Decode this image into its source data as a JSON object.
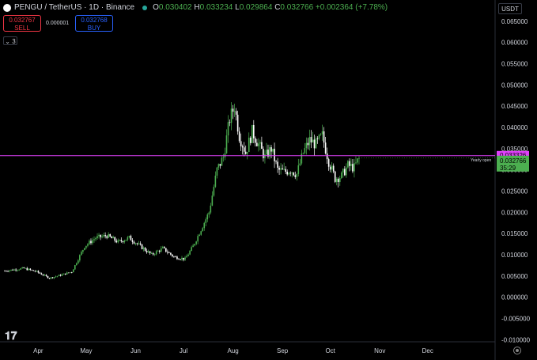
{
  "header": {
    "symbol": "PENGU / TetherUS · 1D · Binance",
    "open_key": "O",
    "open_val": "0.030402",
    "high_key": "H",
    "high_val": "0.033234",
    "low_key": "L",
    "low_val": "0.029864",
    "close_key": "C",
    "close_val": "0.032766",
    "change": "+0.002364 (+7.78%)"
  },
  "trade": {
    "sell_price": "0.032767",
    "sell_label": "SELL",
    "spread": "0.000001",
    "buy_price": "0.032768",
    "buy_label": "BUY"
  },
  "indicator_toggle": "3",
  "currency": "USDT",
  "colors": {
    "up": "#4caf50",
    "down": "#ffffff",
    "yearly_open_line": "#e040fb",
    "price_label": "#4caf50",
    "text": "#d1d4dc"
  },
  "chart_data": {
    "type": "candlestick",
    "y_ticks": [
      "0.065000",
      "0.060000",
      "0.055000",
      "0.050000",
      "0.045000",
      "0.040000",
      "0.035000",
      "0.030000",
      "0.025000",
      "0.020000",
      "0.015000",
      "0.010000",
      "0.005000",
      "0.000000",
      "-0.005000",
      "-0.010000"
    ],
    "ylim": [
      -0.0105,
      0.0685
    ],
    "x_ticks": [
      "Apr",
      "May",
      "Jun",
      "Jul",
      "Aug",
      "Sep",
      "Oct",
      "Nov",
      "Dec"
    ],
    "yearly_open": {
      "label": "Yearly open",
      "value": 0.033326,
      "value_label": "0.033326"
    },
    "last_price": {
      "value": 0.032766,
      "value_label": "0.032766",
      "countdown": "35:29"
    },
    "close_points": [
      {
        "day": 0,
        "close": 0.0062
      },
      {
        "day": 12,
        "close": 0.0068
      },
      {
        "day": 20,
        "close": 0.006
      },
      {
        "day": 28,
        "close": 0.0045
      },
      {
        "day": 35,
        "close": 0.0052
      },
      {
        "day": 42,
        "close": 0.006
      },
      {
        "day": 50,
        "close": 0.012
      },
      {
        "day": 57,
        "close": 0.014
      },
      {
        "day": 64,
        "close": 0.0145
      },
      {
        "day": 71,
        "close": 0.013
      },
      {
        "day": 78,
        "close": 0.014
      },
      {
        "day": 85,
        "close": 0.012
      },
      {
        "day": 92,
        "close": 0.01
      },
      {
        "day": 99,
        "close": 0.0115
      },
      {
        "day": 106,
        "close": 0.0095
      },
      {
        "day": 113,
        "close": 0.009
      },
      {
        "day": 118,
        "close": 0.012
      },
      {
        "day": 123,
        "close": 0.016
      },
      {
        "day": 128,
        "close": 0.02
      },
      {
        "day": 133,
        "close": 0.03
      },
      {
        "day": 137,
        "close": 0.033
      },
      {
        "day": 141,
        "close": 0.042
      },
      {
        "day": 144,
        "close": 0.045
      },
      {
        "day": 147,
        "close": 0.038
      },
      {
        "day": 151,
        "close": 0.034
      },
      {
        "day": 155,
        "close": 0.039
      },
      {
        "day": 159,
        "close": 0.036
      },
      {
        "day": 163,
        "close": 0.033
      },
      {
        "day": 167,
        "close": 0.035
      },
      {
        "day": 171,
        "close": 0.03
      },
      {
        "day": 175,
        "close": 0.0295
      },
      {
        "day": 179,
        "close": 0.03
      },
      {
        "day": 183,
        "close": 0.029
      },
      {
        "day": 187,
        "close": 0.034
      },
      {
        "day": 191,
        "close": 0.037
      },
      {
        "day": 195,
        "close": 0.036
      },
      {
        "day": 199,
        "close": 0.038
      },
      {
        "day": 203,
        "close": 0.032
      },
      {
        "day": 207,
        "close": 0.028
      },
      {
        "day": 211,
        "close": 0.0285
      },
      {
        "day": 215,
        "close": 0.031
      },
      {
        "day": 219,
        "close": 0.0305
      },
      {
        "day": 222,
        "close": 0.0328
      }
    ],
    "x_tick_days": [
      21,
      51,
      82,
      112,
      143,
      174,
      204,
      235,
      265
    ]
  }
}
